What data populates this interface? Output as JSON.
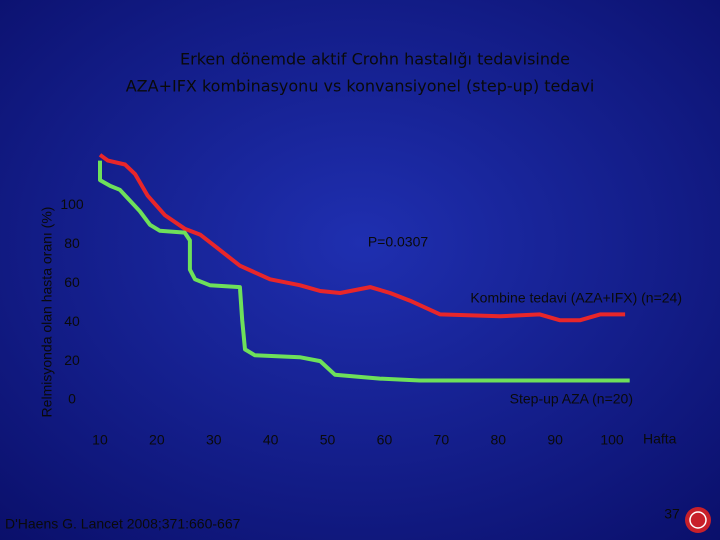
{
  "chart_data": {
    "type": "line",
    "title": [
      "Erken dönemde  aktif  Crohn hastalığı tedavisinde",
      "AZA+IFX  kombinasyonu  vs  konvansiyonel  (step-up) tedavi"
    ],
    "y_label": "Relmisyonda olan hasta oranı (%)",
    "x_label": "Hafta",
    "xlim": [
      5,
      105
    ],
    "xticks": [
      10,
      20,
      30,
      40,
      50,
      60,
      70,
      80,
      90,
      100
    ],
    "ylim": [
      0,
      130
    ],
    "yticks": [
      0,
      20,
      40,
      60,
      80,
      100
    ],
    "grid": false,
    "annotations": [
      "P=0.0307",
      "Kombine tedavi (AZA+IFX) (n=24)",
      "Step-up  AZA  (n=20)"
    ],
    "series": [
      {
        "color": "#e8262a",
        "x": [
          10,
          11.4,
          14.4,
          16.2,
          18.4,
          21.4,
          24.9,
          27.6,
          31.1,
          34.6,
          39.9,
          45.1,
          48.7,
          52.2,
          57.5,
          61,
          64.5,
          69.8,
          80.3,
          87.3,
          90.8,
          94.4,
          97.9,
          102.3
        ],
        "values": [
          126,
          123,
          121,
          116,
          105,
          95,
          88,
          85,
          77,
          69,
          62,
          59,
          56,
          55,
          58,
          55,
          51,
          44,
          43,
          44,
          41,
          41,
          44,
          44
        ]
      },
      {
        "color": "#6ee05a",
        "x": [
          10,
          10,
          11.8,
          13.5,
          17,
          18.8,
          20.5,
          24.9,
          25.8,
          25.8,
          26.7,
          29.3,
          34.6,
          35,
          35.5,
          37.2,
          45.1,
          48.7,
          51.3,
          59.2,
          66.2,
          103.1
        ],
        "values": [
          123,
          113,
          110,
          108,
          97,
          90,
          87,
          86,
          82,
          67,
          62,
          59,
          58,
          41,
          26,
          23,
          22,
          20,
          13,
          11,
          10,
          10
        ]
      }
    ],
    "footer": "D'Haens G. Lancet 2008;371:660-667",
    "page_number": "37"
  }
}
